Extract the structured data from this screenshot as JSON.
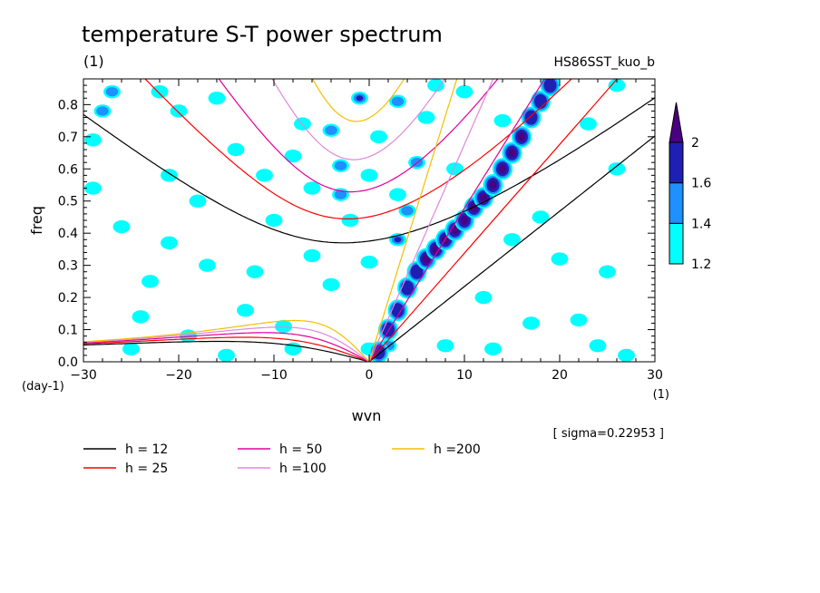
{
  "chart_data": {
    "type": "heatmap",
    "title": "temperature S-T power spectrum",
    "subtitle": "(1)",
    "dataset_label": "HS86SST_kuo_b",
    "xlabel": "wvn",
    "ylabel": "freq",
    "x_unit": "(1)",
    "y_unit": "(day-1)",
    "xlim": [
      -30,
      30
    ],
    "ylim": [
      0,
      0.88
    ],
    "x_ticks": [
      -30,
      -20,
      -10,
      0,
      10,
      20,
      30
    ],
    "x_tick_labels": [
      "−30",
      "−20",
      "−10",
      "0",
      "10",
      "20",
      "30"
    ],
    "y_ticks": [
      0,
      0.1,
      0.2,
      0.3,
      0.4,
      0.5,
      0.6,
      0.7,
      0.8
    ],
    "y_tick_labels": [
      "0.0",
      "0.1",
      "0.2",
      "0.3",
      "0.4",
      "0.5",
      "0.6",
      "0.7",
      "0.8"
    ],
    "sigma_text": "[ sigma=0.22953 ]",
    "colorbar": {
      "levels": [
        1.2,
        1.4,
        1.6,
        2
      ],
      "level_labels": [
        "1.2",
        "1.4",
        "1.6",
        "2"
      ],
      "colors": [
        "#00ffff",
        "#1e90ff",
        "#1f1fb4",
        "#4b0082"
      ]
    },
    "dispersion_curves": [
      {
        "label": "h = 12",
        "h": 12,
        "color": "#000000"
      },
      {
        "label": "h = 25",
        "h": 25,
        "color": "#ff0000"
      },
      {
        "label": "h = 50",
        "h": 50,
        "color": "#e0009a"
      },
      {
        "label": "h =100",
        "h": 100,
        "color": "#dd88dd"
      },
      {
        "label": "h =200",
        "h": 200,
        "color": "#f0c000"
      }
    ],
    "kelvin_ridge": [
      [
        1,
        0.03
      ],
      [
        2,
        0.1
      ],
      [
        3,
        0.16
      ],
      [
        4,
        0.23
      ],
      [
        5,
        0.28
      ],
      [
        6,
        0.32
      ],
      [
        7,
        0.35
      ],
      [
        8,
        0.38
      ],
      [
        9,
        0.41
      ],
      [
        10,
        0.44
      ],
      [
        11,
        0.48
      ],
      [
        12,
        0.51
      ],
      [
        13,
        0.55
      ],
      [
        14,
        0.6
      ],
      [
        15,
        0.65
      ],
      [
        16,
        0.7
      ],
      [
        17,
        0.76
      ],
      [
        18,
        0.81
      ],
      [
        19,
        0.86
      ]
    ],
    "spots": [
      {
        "x": -1,
        "y": 0.82,
        "level": 3
      },
      {
        "x": 3,
        "y": 0.81,
        "level": 2
      },
      {
        "x": 6,
        "y": 0.76,
        "level": 1
      },
      {
        "x": -7,
        "y": 0.74,
        "level": 1
      },
      {
        "x": -4,
        "y": 0.72,
        "level": 2
      },
      {
        "x": 1,
        "y": 0.7,
        "level": 1
      },
      {
        "x": -8,
        "y": 0.64,
        "level": 1
      },
      {
        "x": -3,
        "y": 0.61,
        "level": 2
      },
      {
        "x": 5,
        "y": 0.62,
        "level": 2
      },
      {
        "x": -11,
        "y": 0.58,
        "level": 1
      },
      {
        "x": -6,
        "y": 0.54,
        "level": 1
      },
      {
        "x": 3,
        "y": 0.52,
        "level": 1
      },
      {
        "x": -3,
        "y": 0.52,
        "level": 2
      },
      {
        "x": 4,
        "y": 0.47,
        "level": 2
      },
      {
        "x": 3,
        "y": 0.38,
        "level": 3
      },
      {
        "x": -27,
        "y": 0.84,
        "level": 2
      },
      {
        "x": -28,
        "y": 0.78,
        "level": 2
      },
      {
        "x": -22,
        "y": 0.84,
        "level": 1
      },
      {
        "x": -20,
        "y": 0.78,
        "level": 1
      },
      {
        "x": -29,
        "y": 0.54,
        "level": 1
      },
      {
        "x": -21,
        "y": 0.58,
        "level": 1
      },
      {
        "x": -18,
        "y": 0.5,
        "level": 1
      },
      {
        "x": -26,
        "y": 0.42,
        "level": 1
      },
      {
        "x": -21,
        "y": 0.37,
        "level": 1
      },
      {
        "x": -17,
        "y": 0.3,
        "level": 1
      },
      {
        "x": -12,
        "y": 0.28,
        "level": 1
      },
      {
        "x": -4,
        "y": 0.24,
        "level": 1
      },
      {
        "x": -6,
        "y": 0.33,
        "level": 1
      },
      {
        "x": 0,
        "y": 0.31,
        "level": 1
      },
      {
        "x": -13,
        "y": 0.16,
        "level": 1
      },
      {
        "x": -24,
        "y": 0.14,
        "level": 1
      },
      {
        "x": -19,
        "y": 0.08,
        "level": 1
      },
      {
        "x": -25,
        "y": 0.04,
        "level": 1
      },
      {
        "x": -15,
        "y": 0.02,
        "level": 1
      },
      {
        "x": -8,
        "y": 0.04,
        "level": 1
      },
      {
        "x": 0,
        "y": 0.04,
        "level": 1
      },
      {
        "x": 2,
        "y": 0.05,
        "level": 2
      },
      {
        "x": 24,
        "y": 0.05,
        "level": 1
      },
      {
        "x": 27,
        "y": 0.02,
        "level": 1
      },
      {
        "x": 22,
        "y": 0.13,
        "level": 1
      },
      {
        "x": 25,
        "y": 0.28,
        "level": 1
      },
      {
        "x": 26,
        "y": 0.6,
        "level": 1
      },
      {
        "x": 23,
        "y": 0.74,
        "level": 1
      },
      {
        "x": 26,
        "y": 0.86,
        "level": 1
      },
      {
        "x": 10,
        "y": 0.84,
        "level": 1
      },
      {
        "x": 14,
        "y": 0.75,
        "level": 1
      },
      {
        "x": 9,
        "y": 0.6,
        "level": 1
      },
      {
        "x": 18,
        "y": 0.45,
        "level": 1
      },
      {
        "x": 15,
        "y": 0.38,
        "level": 1
      },
      {
        "x": 20,
        "y": 0.32,
        "level": 1
      },
      {
        "x": 12,
        "y": 0.2,
        "level": 1
      },
      {
        "x": 17,
        "y": 0.12,
        "level": 1
      },
      {
        "x": 8,
        "y": 0.05,
        "level": 1
      },
      {
        "x": -2,
        "y": 0.44,
        "level": 1
      },
      {
        "x": -10,
        "y": 0.44,
        "level": 1
      },
      {
        "x": -14,
        "y": 0.66,
        "level": 1
      },
      {
        "x": -16,
        "y": 0.82,
        "level": 1
      },
      {
        "x": 0,
        "y": 0.58,
        "level": 1
      },
      {
        "x": 7,
        "y": 0.86,
        "level": 1
      },
      {
        "x": -29,
        "y": 0.69,
        "level": 1
      },
      {
        "x": -23,
        "y": 0.25,
        "level": 1
      },
      {
        "x": -9,
        "y": 0.11,
        "level": 1
      },
      {
        "x": 13,
        "y": 0.04,
        "level": 1
      }
    ]
  }
}
